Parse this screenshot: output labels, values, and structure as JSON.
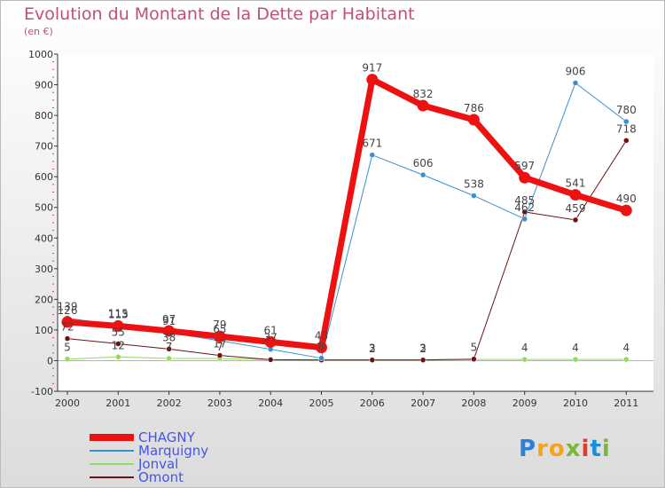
{
  "title": "Evolution du Montant de la Dette par Habitant",
  "subtitle": "(en €)",
  "logo": {
    "letters": [
      "P",
      "r",
      "o",
      "x",
      "i",
      "t",
      "i"
    ],
    "colors": [
      "#2f7fd6",
      "#f4a31a",
      "#f4a31a",
      "#78b93a",
      "#e33a2e",
      "#1a8fd6",
      "#78b93a"
    ]
  },
  "chart_data": {
    "type": "line",
    "title": "Evolution du Montant de la Dette par Habitant",
    "ylabel": "(en €)",
    "xlabel": "",
    "ylim": [
      -100,
      1000
    ],
    "yticks": [
      -100,
      0,
      100,
      200,
      300,
      400,
      500,
      600,
      700,
      800,
      900,
      1000
    ],
    "categories": [
      "2000",
      "2001",
      "2002",
      "2003",
      "2004",
      "2005",
      "2006",
      "2007",
      "2008",
      "2009",
      "2010",
      "2011"
    ],
    "series": [
      {
        "name": "CHAGNY",
        "color": "#ee1111",
        "values": [
          126,
          113,
          97,
          79,
          61,
          43,
          917,
          832,
          786,
          597,
          541,
          490
        ],
        "labels": [
          "126",
          "113",
          "97",
          "79",
          "61",
          "43",
          "917",
          "832",
          "786",
          "597",
          "541",
          "490"
        ]
      },
      {
        "name": "Marquigny",
        "color": "#3c8fce",
        "values": [
          139,
          115,
          91,
          65,
          37,
          8,
          671,
          606,
          538,
          462,
          906,
          780
        ],
        "labels": [
          "139",
          "115",
          "91",
          "65",
          "37",
          "8",
          "671",
          "606",
          "538",
          "462",
          "906",
          "780"
        ]
      },
      {
        "name": "Jonval",
        "color": "#8ede5c",
        "values": [
          5,
          12,
          7,
          7,
          3,
          3,
          3,
          3,
          4,
          4,
          4,
          4
        ],
        "labels": [
          "5",
          "12",
          "7",
          "7",
          "",
          "",
          "3",
          "3",
          "",
          "4",
          "4",
          "4"
        ]
      },
      {
        "name": "Omont",
        "color": "#6b1414",
        "values": [
          72,
          55,
          38,
          17,
          3,
          2,
          2,
          2,
          5,
          485,
          459,
          718
        ],
        "labels": [
          "72",
          "55",
          "38",
          "17",
          "",
          "",
          "2",
          "2",
          "5",
          "485",
          "459",
          "718"
        ]
      }
    ],
    "legend": "bottom-left",
    "grid": false
  }
}
